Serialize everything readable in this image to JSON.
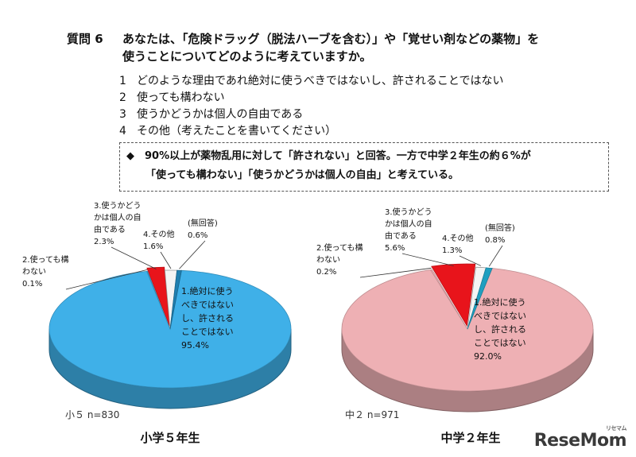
{
  "question": {
    "number": "質問 6",
    "line1": "あなたは、「危険ドラッグ（脱法ハーブを含む）」や「覚せい剤などの薬物」を",
    "line2": "使うことについてどのように考えていますか。",
    "options": [
      {
        "num": "1",
        "text": "どのような理由であれ絶対に使うべきではないし、許されることではない"
      },
      {
        "num": "2",
        "text": "使っても構わない"
      },
      {
        "num": "3",
        "text": "使うかどうかは個人の自由である"
      },
      {
        "num": "4",
        "text": "その他（考えたことを書いてください）"
      }
    ]
  },
  "callout": {
    "line1": "◆　90%以上が薬物乱用に対して「許されない」と回答。一方で中学２年生の約６%が",
    "line2": "「使っても構わない」「使うかどうかは個人の自由」と考えている。"
  },
  "chart_data": [
    {
      "type": "pie",
      "title": "小学５年生",
      "sample": "小５ n=830",
      "main_color": "#3fb0e8",
      "slices": [
        {
          "label": "1.絶対に使うべきではないし、許されることではない",
          "value": 95.4,
          "color": "#3fb0e8",
          "label_lines": [
            "1.絶対に使う",
            "べきではない",
            "し、許される",
            "ことではない",
            "95.4%"
          ]
        },
        {
          "label": "2.使っても構わない",
          "value": 0.1,
          "color": "#3fb0e8",
          "label_lines": [
            "2.使っても構",
            "わない",
            "0.1%"
          ]
        },
        {
          "label": "3.使うかどうかは個人の自由である",
          "value": 2.3,
          "color": "#e8141b",
          "label_lines": [
            "3.使うかどう",
            "かは個人の自",
            "由である",
            "2.3%"
          ]
        },
        {
          "label": "4.その他",
          "value": 1.6,
          "color": "#f4f4f4",
          "label_lines": [
            "4.その他",
            "1.6%"
          ]
        },
        {
          "label": "(無回答)",
          "value": 0.6,
          "color": "#1f7fb0",
          "label_lines": [
            "(無回答)",
            "0.6%"
          ]
        }
      ]
    },
    {
      "type": "pie",
      "title": "中学２年生",
      "sample": "中２ n=971",
      "main_color": "#eeb0b4",
      "slices": [
        {
          "label": "1.絶対に使うべきではないし、許されることではない",
          "value": 92.0,
          "color": "#eeb0b4",
          "label_lines": [
            "1.絶対に使う",
            "べきではない",
            "し、許される",
            "ことではない",
            "92.0%"
          ]
        },
        {
          "label": "2.使っても構わない",
          "value": 0.2,
          "color": "#eeb0b4",
          "label_lines": [
            "2.使っても構",
            "わない",
            "0.2%"
          ]
        },
        {
          "label": "3.使うかどうかは個人の自由である",
          "value": 5.6,
          "color": "#e8141b",
          "label_lines": [
            "3.使うかどう",
            "かは個人の自",
            "由である",
            "5.6%"
          ]
        },
        {
          "label": "4.その他",
          "value": 1.3,
          "color": "#f4f4f4",
          "label_lines": [
            "4.その他",
            "1.3%"
          ]
        },
        {
          "label": "(無回答)",
          "value": 0.8,
          "color": "#1f9fc0",
          "label_lines": [
            "(無回答)",
            "0.8%"
          ]
        }
      ]
    }
  ],
  "logo": {
    "text": "ReseMom",
    "sup": "リセマム"
  }
}
